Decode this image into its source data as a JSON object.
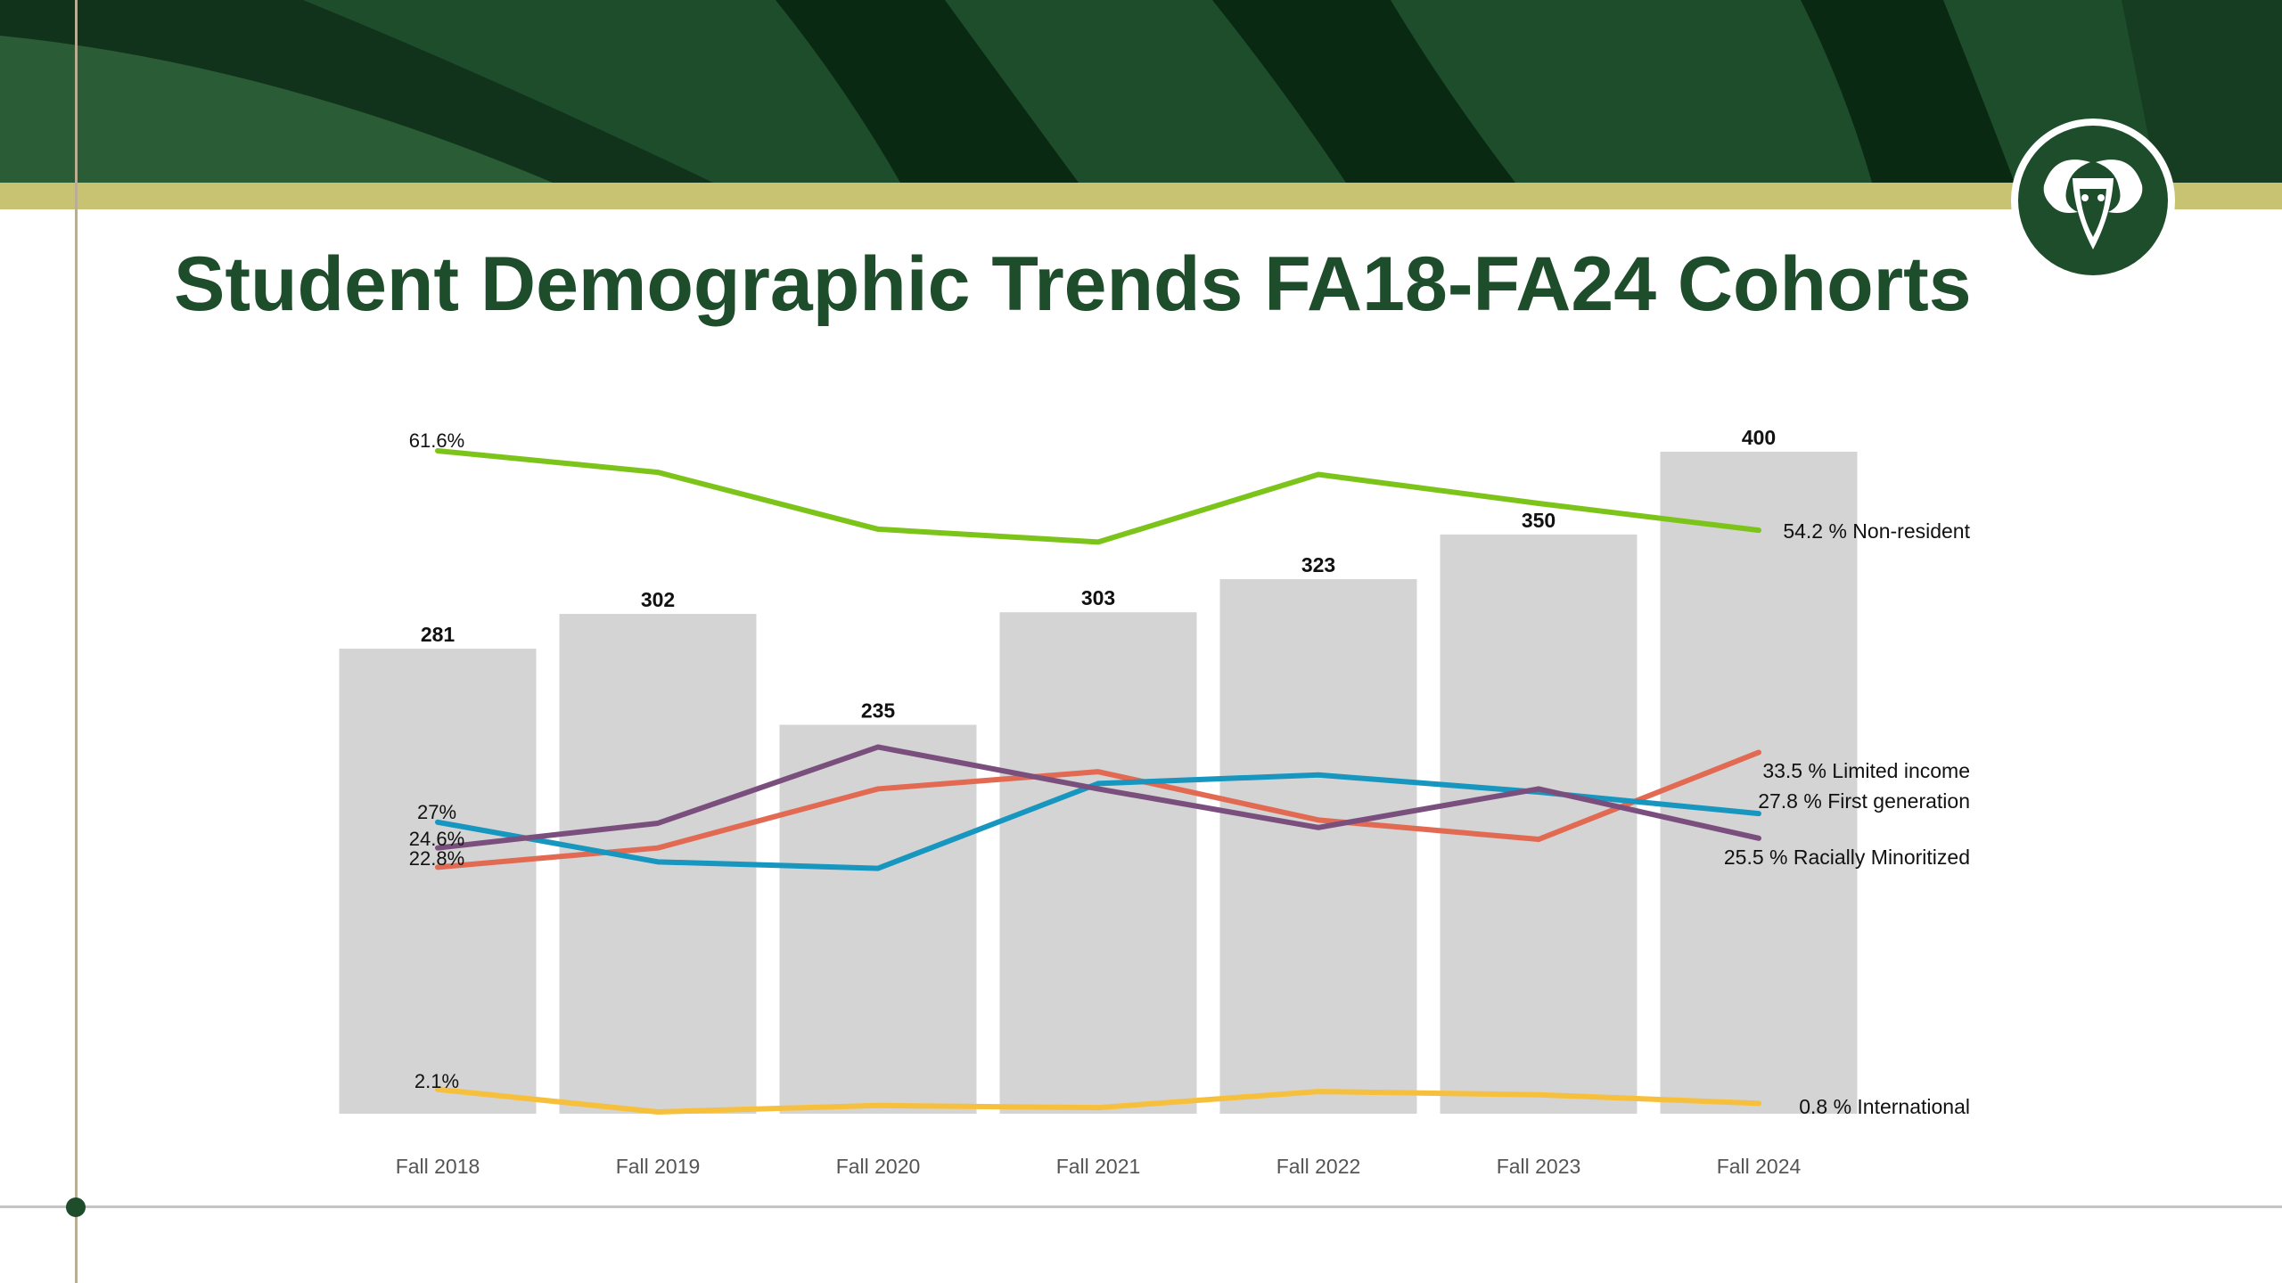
{
  "slide": {
    "title": "Student Demographic Trends FA18-FA24 Cohorts",
    "logo_icon": "ram-head-icon",
    "colors": {
      "brand_green": "#1e4d2b",
      "gold": "#c8c372"
    }
  },
  "chart_data": {
    "type": "bar",
    "title": "",
    "xlabel": "",
    "ylabel": "",
    "categories": [
      "Fall 2018",
      "Fall 2019",
      "Fall 2020",
      "Fall 2021",
      "Fall 2022",
      "Fall 2023",
      "Fall 2024"
    ],
    "bars": {
      "values": [
        281,
        302,
        235,
        303,
        323,
        350,
        400
      ],
      "labels": [
        "281",
        "302",
        "235",
        "303",
        "323",
        "350",
        "400"
      ],
      "color": "#d4d4d4",
      "ylim": [
        0,
        400
      ]
    },
    "lines_ylim": [
      0,
      80
    ],
    "series": [
      {
        "name": "Non-resident",
        "end_label": "54.2 % Non-resident",
        "start_label": "61.6%",
        "color": "#7cc41a",
        "values": [
          61.6,
          59.6,
          54.3,
          53.1,
          59.4,
          56.7,
          54.2
        ]
      },
      {
        "name": "Limited income",
        "end_label": "33.5 % Limited income",
        "start_label": "22.8%",
        "color": "#e36a52",
        "values": [
          22.8,
          24.6,
          30.1,
          31.7,
          27.2,
          25.4,
          33.5
        ]
      },
      {
        "name": "First generation",
        "end_label": "27.8 % First generation",
        "start_label": "27%",
        "color": "#1796c0",
        "values": [
          27.0,
          23.3,
          22.7,
          30.6,
          31.4,
          29.8,
          27.8
        ]
      },
      {
        "name": "Racially Minoritized",
        "end_label": "25.5 % Racially Minoritized",
        "start_label": "24.6%",
        "color": "#7a4f7e",
        "values": [
          24.6,
          26.9,
          34.0,
          30.1,
          26.5,
          30.1,
          25.5
        ]
      },
      {
        "name": "International",
        "end_label": "0.8 % International",
        "start_label": "2.1%",
        "color": "#f7c03c",
        "values": [
          2.1,
          0.0,
          0.6,
          0.4,
          1.9,
          1.6,
          0.8
        ]
      }
    ],
    "legend": "inline-right",
    "grid": false
  }
}
